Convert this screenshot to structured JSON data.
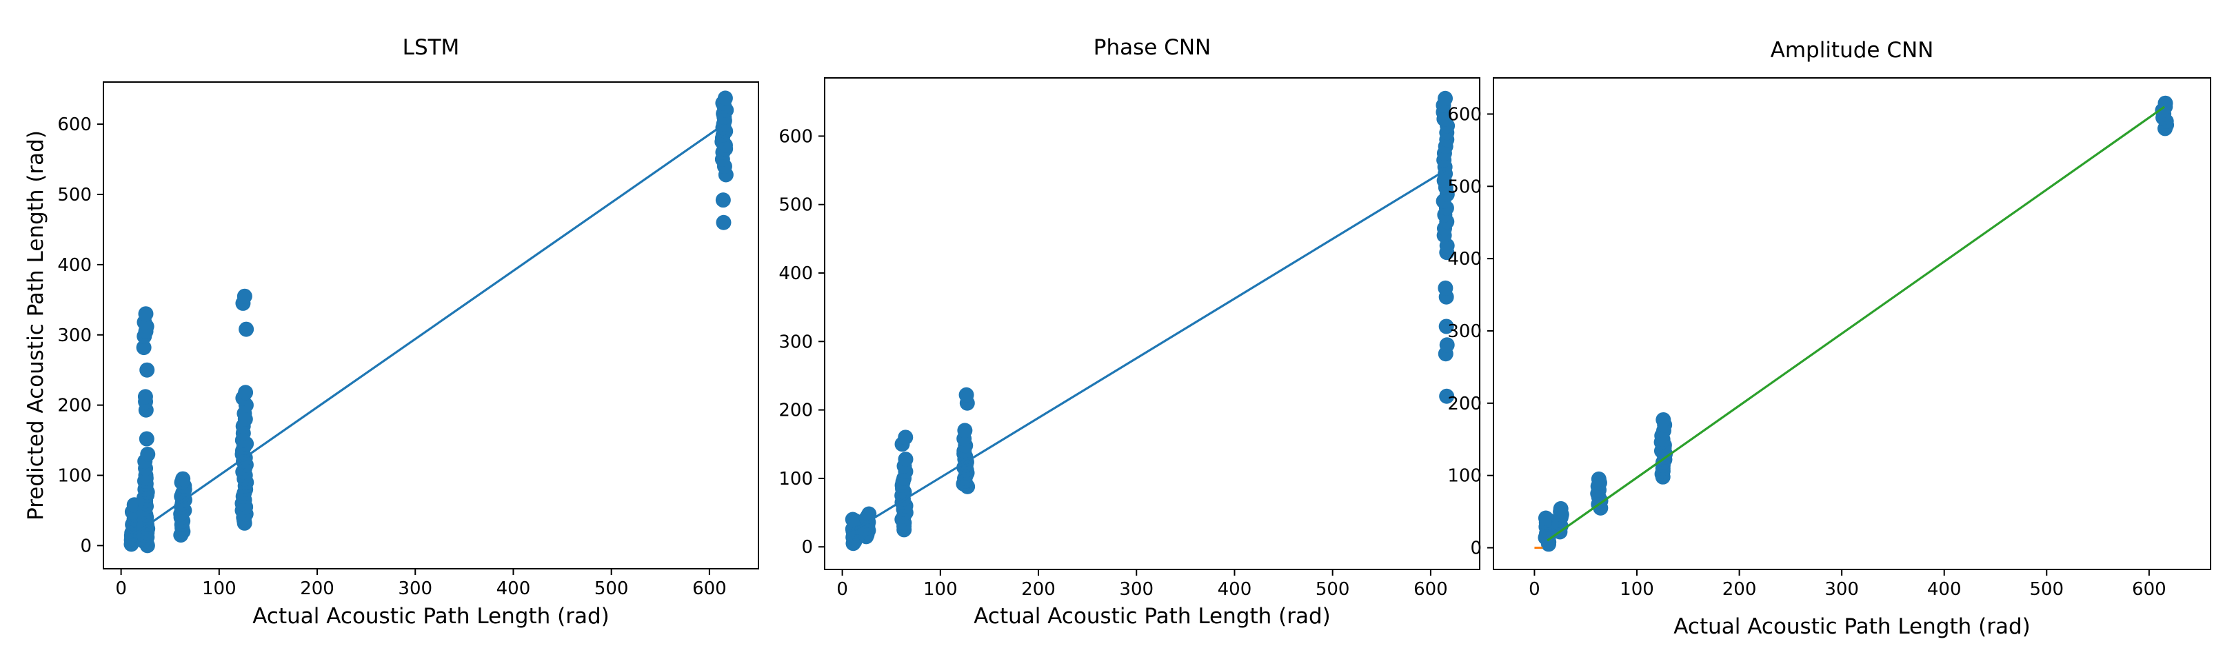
{
  "colors": {
    "scatter": "#1f77b4",
    "fit_line_blue": "#1f77b4",
    "fit_line_green": "#2ca02c",
    "marker_orange": "#ff7f0e",
    "axes": "#000000",
    "background": "#ffffff"
  },
  "chart_data": [
    {
      "type": "scatter",
      "title": "LSTM",
      "xlabel": "Actual Acoustic Path Length (rad)",
      "ylabel": "Predicted Acoustic Path Length (rad)",
      "xlim": [
        -18,
        650
      ],
      "ylim": [
        -33,
        660
      ],
      "xticks": [
        0,
        100,
        200,
        300,
        400,
        500,
        600
      ],
      "yticks": [
        0,
        100,
        200,
        300,
        400,
        500,
        600
      ],
      "grid": false,
      "fit_line": {
        "color": "#1f77b4",
        "x": [
          12.57,
          615
        ],
        "y": [
          15,
          600
        ]
      },
      "points_by_x": [
        {
          "x": 12.57,
          "y": [
            2,
            5,
            8,
            10,
            12,
            14,
            16,
            18,
            20,
            22,
            24,
            26,
            28,
            30,
            32,
            34,
            36,
            38,
            40,
            44,
            48,
            58
          ]
        },
        {
          "x": 25.13,
          "y": [
            0,
            3,
            6,
            9,
            12,
            15,
            18,
            21,
            24,
            27,
            30,
            33,
            36,
            40,
            44,
            48,
            52,
            56,
            60,
            64,
            68,
            72,
            76,
            80,
            84,
            88,
            92,
            96,
            100,
            110,
            120,
            130,
            152,
            193,
            205,
            212,
            250,
            282,
            298,
            305,
            312,
            318,
            330
          ]
        },
        {
          "x": 62.83,
          "y": [
            15,
            20,
            25,
            30,
            35,
            40,
            45,
            50,
            55,
            60,
            65,
            70,
            75,
            80,
            85,
            90,
            95
          ]
        },
        {
          "x": 125.66,
          "y": [
            32,
            36,
            40,
            45,
            50,
            55,
            60,
            65,
            70,
            75,
            80,
            85,
            90,
            95,
            100,
            105,
            110,
            115,
            120,
            125,
            130,
            135,
            140,
            145,
            150,
            160,
            170,
            180,
            188,
            200,
            210,
            218,
            308,
            345,
            355
          ]
        },
        {
          "x": 615,
          "y": [
            460,
            492,
            528,
            540,
            550,
            560,
            565,
            570,
            575,
            580,
            585,
            590,
            595,
            600,
            605,
            610,
            615,
            620,
            625,
            630,
            637
          ]
        }
      ]
    },
    {
      "type": "scatter",
      "title": "Phase CNN",
      "xlabel": "Actual Acoustic Path Length (rad)",
      "ylabel": "",
      "xlim": [
        -18,
        650
      ],
      "ylim": [
        -33,
        685
      ],
      "xticks": [
        0,
        100,
        200,
        300,
        400,
        500,
        600
      ],
      "yticks": [
        0,
        100,
        200,
        300,
        400,
        500,
        600
      ],
      "grid": false,
      "fit_line": {
        "color": "#1f77b4",
        "x": [
          12.57,
          615
        ],
        "y": [
          25,
          550
        ]
      },
      "points_by_x": [
        {
          "x": 12.57,
          "y": [
            5,
            8,
            11,
            14,
            17,
            20,
            23,
            26,
            29,
            32,
            35,
            38,
            40
          ]
        },
        {
          "x": 25.13,
          "y": [
            15,
            18,
            21,
            24,
            27,
            30,
            33,
            36,
            39,
            42,
            45,
            48
          ]
        },
        {
          "x": 62.83,
          "y": [
            25,
            30,
            35,
            40,
            45,
            50,
            55,
            60,
            65,
            70,
            75,
            80,
            85,
            90,
            95,
            100,
            110,
            118,
            128,
            150,
            160
          ]
        },
        {
          "x": 125.66,
          "y": [
            88,
            92,
            96,
            100,
            104,
            108,
            112,
            116,
            120,
            124,
            128,
            132,
            136,
            140,
            148,
            158,
            170,
            210,
            222
          ]
        },
        {
          "x": 615,
          "y": [
            220,
            282,
            295,
            322,
            365,
            378,
            430,
            440,
            455,
            465,
            475,
            485,
            495,
            505,
            515,
            525,
            535,
            545,
            555,
            565,
            575,
            585,
            595,
            605,
            615,
            625,
            635,
            645,
            655
          ]
        }
      ]
    },
    {
      "type": "scatter",
      "title": "Amplitude CNN",
      "xlabel": "Actual Acoustic Path Length (rad)",
      "ylabel": "",
      "xlim": [
        -40,
        660
      ],
      "ylim": [
        -30,
        650
      ],
      "xticks": [
        0,
        100,
        200,
        300,
        400,
        500,
        600
      ],
      "yticks": [
        0,
        100,
        200,
        300,
        400,
        500,
        600
      ],
      "grid": false,
      "fit_line": {
        "color": "#2ca02c",
        "x": [
          12.57,
          615
        ],
        "y": [
          10,
          610
        ]
      },
      "orange_segment": {
        "color": "#ff7f0e",
        "x": [
          0,
          8
        ],
        "y": [
          0,
          0
        ]
      },
      "points_by_x": [
        {
          "x": 12.57,
          "y": [
            5,
            8,
            11,
            14,
            17,
            20,
            23,
            26,
            29,
            32,
            35,
            38,
            41
          ]
        },
        {
          "x": 25.13,
          "y": [
            22,
            26,
            30,
            34,
            38,
            42,
            46,
            50,
            54
          ]
        },
        {
          "x": 62.83,
          "y": [
            55,
            60,
            65,
            70,
            75,
            80,
            85,
            90,
            95
          ]
        },
        {
          "x": 125.66,
          "y": [
            98,
            102,
            106,
            110,
            114,
            118,
            122,
            126,
            130,
            134,
            138,
            142,
            146,
            150,
            155,
            162,
            170,
            177
          ]
        },
        {
          "x": 615,
          "y": [
            580,
            585,
            590,
            595,
            600,
            605,
            610,
            615
          ]
        }
      ]
    }
  ]
}
